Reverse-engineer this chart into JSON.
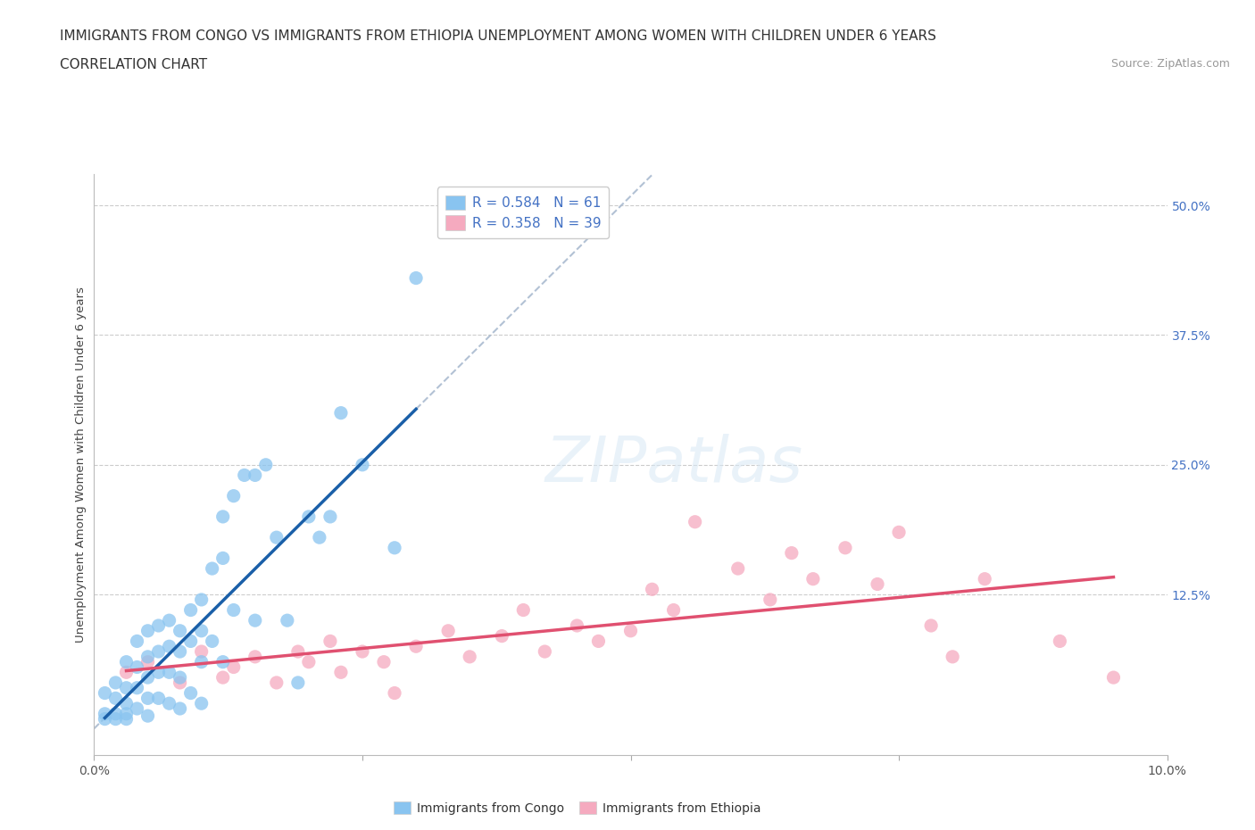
{
  "title_line1": "IMMIGRANTS FROM CONGO VS IMMIGRANTS FROM ETHIOPIA UNEMPLOYMENT AMONG WOMEN WITH CHILDREN UNDER 6 YEARS",
  "title_line2": "CORRELATION CHART",
  "source_text": "Source: ZipAtlas.com",
  "ylabel": "Unemployment Among Women with Children Under 6 years",
  "xlim": [
    0.0,
    0.1
  ],
  "ylim": [
    -0.03,
    0.53
  ],
  "xtick_positions": [
    0.0,
    0.025,
    0.05,
    0.075,
    0.1
  ],
  "xtick_labels": [
    "0.0%",
    "",
    "",
    "",
    "10.0%"
  ],
  "right_ytick_labels": [
    "50.0%",
    "37.5%",
    "25.0%",
    "12.5%"
  ],
  "right_ytick_values": [
    0.5,
    0.375,
    0.25,
    0.125
  ],
  "congo_color": "#89C4F0",
  "ethiopia_color": "#F5AABF",
  "congo_line_color": "#1A5FA8",
  "ethiopia_line_color": "#E05070",
  "dashed_line_color": "#AABBD0",
  "legend_text_congo": "R = 0.584   N = 61",
  "legend_text_ethiopia": "R = 0.358   N = 39",
  "legend_label_congo": "Immigrants from Congo",
  "legend_label_ethiopia": "Immigrants from Ethiopia",
  "watermark": "ZIPatlas",
  "background_color": "#FFFFFF",
  "grid_color": "#CCCCCC",
  "title_color": "#333333",
  "right_tick_color": "#4472C4",
  "title_fontsize": 11,
  "axis_label_fontsize": 9.5,
  "tick_fontsize": 10,
  "legend_fontsize": 11,
  "congo_x": [
    0.001,
    0.001,
    0.001,
    0.002,
    0.002,
    0.002,
    0.002,
    0.003,
    0.003,
    0.003,
    0.003,
    0.003,
    0.004,
    0.004,
    0.004,
    0.004,
    0.005,
    0.005,
    0.005,
    0.005,
    0.005,
    0.006,
    0.006,
    0.006,
    0.006,
    0.007,
    0.007,
    0.007,
    0.007,
    0.008,
    0.008,
    0.008,
    0.008,
    0.009,
    0.009,
    0.009,
    0.01,
    0.01,
    0.01,
    0.01,
    0.011,
    0.011,
    0.012,
    0.012,
    0.012,
    0.013,
    0.013,
    0.014,
    0.015,
    0.015,
    0.016,
    0.017,
    0.018,
    0.019,
    0.02,
    0.021,
    0.022,
    0.023,
    0.025,
    0.028,
    0.03
  ],
  "congo_y": [
    0.03,
    0.01,
    0.005,
    0.04,
    0.025,
    0.01,
    0.005,
    0.06,
    0.035,
    0.02,
    0.01,
    0.005,
    0.08,
    0.055,
    0.035,
    0.015,
    0.09,
    0.065,
    0.045,
    0.025,
    0.008,
    0.095,
    0.07,
    0.05,
    0.025,
    0.1,
    0.075,
    0.05,
    0.02,
    0.09,
    0.07,
    0.045,
    0.015,
    0.11,
    0.08,
    0.03,
    0.12,
    0.09,
    0.06,
    0.02,
    0.15,
    0.08,
    0.2,
    0.16,
    0.06,
    0.22,
    0.11,
    0.24,
    0.24,
    0.1,
    0.25,
    0.18,
    0.1,
    0.04,
    0.2,
    0.18,
    0.2,
    0.3,
    0.25,
    0.17,
    0.43
  ],
  "ethiopia_x": [
    0.003,
    0.005,
    0.008,
    0.01,
    0.012,
    0.013,
    0.015,
    0.017,
    0.019,
    0.02,
    0.022,
    0.023,
    0.025,
    0.027,
    0.028,
    0.03,
    0.033,
    0.035,
    0.038,
    0.04,
    0.042,
    0.045,
    0.047,
    0.05,
    0.052,
    0.054,
    0.056,
    0.06,
    0.063,
    0.065,
    0.067,
    0.07,
    0.073,
    0.075,
    0.078,
    0.08,
    0.083,
    0.09,
    0.095
  ],
  "ethiopia_y": [
    0.05,
    0.06,
    0.04,
    0.07,
    0.045,
    0.055,
    0.065,
    0.04,
    0.07,
    0.06,
    0.08,
    0.05,
    0.07,
    0.06,
    0.03,
    0.075,
    0.09,
    0.065,
    0.085,
    0.11,
    0.07,
    0.095,
    0.08,
    0.09,
    0.13,
    0.11,
    0.195,
    0.15,
    0.12,
    0.165,
    0.14,
    0.17,
    0.135,
    0.185,
    0.095,
    0.065,
    0.14,
    0.08,
    0.045
  ]
}
